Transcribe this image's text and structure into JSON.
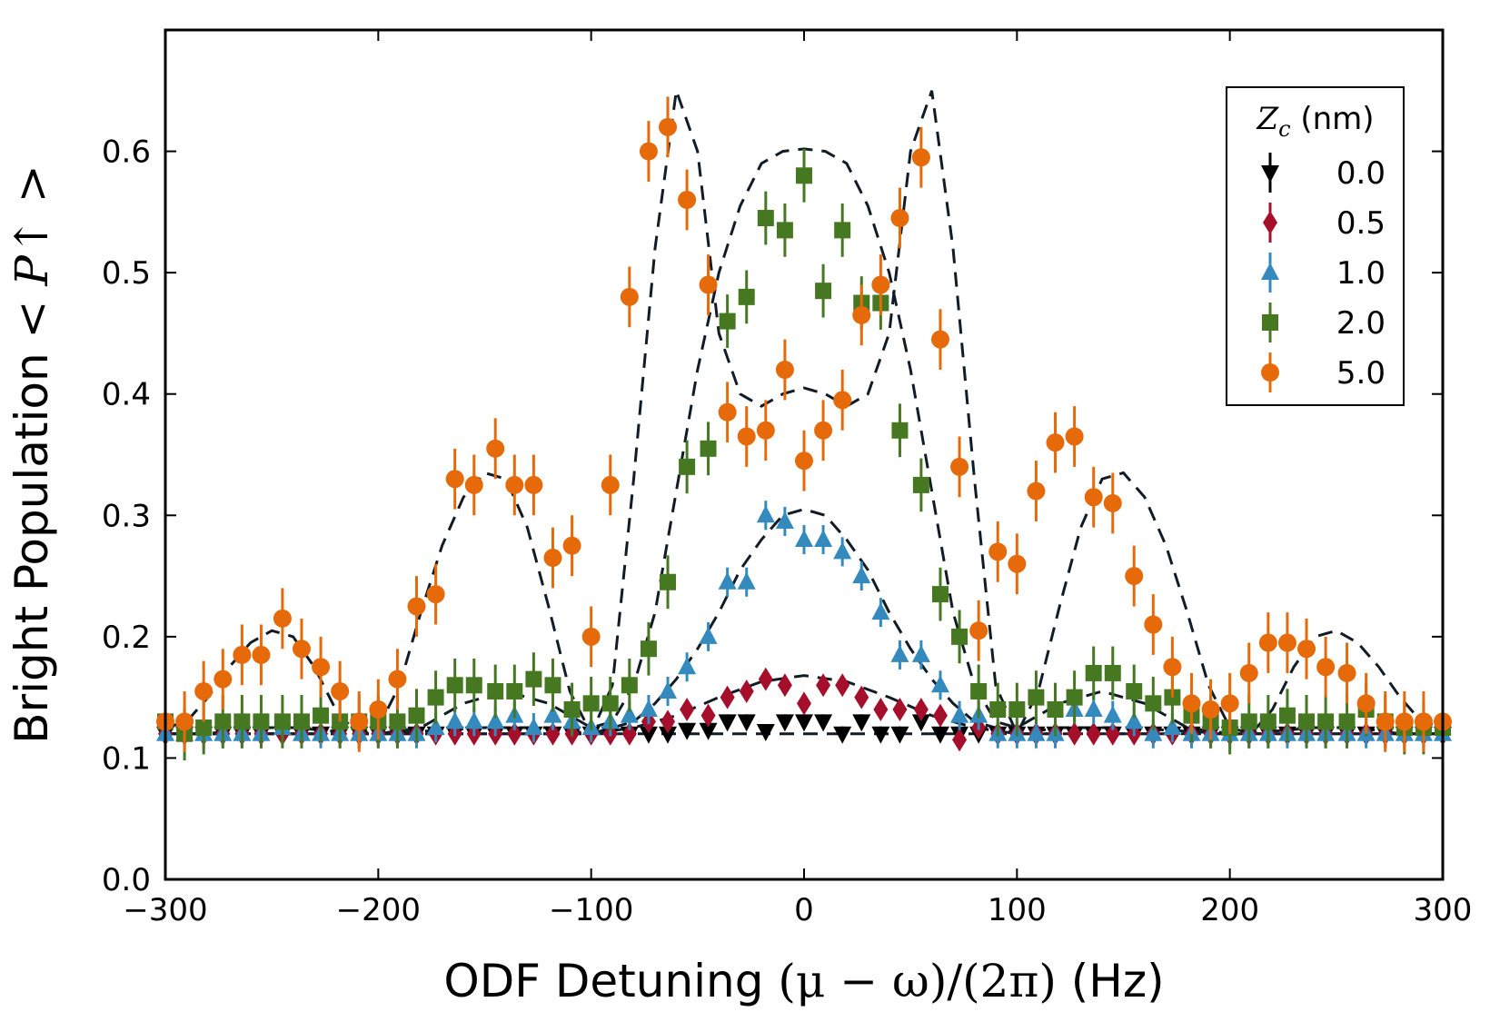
{
  "chart_data": {
    "type": "scatter",
    "title": "",
    "xlabel": {
      "prefix": "ODF Detuning ",
      "math": "(μ − ω)/(2π)",
      "suffix": " (Hz)"
    },
    "ylabel": {
      "prefix": "Bright Population ",
      "math": "< P↑ >"
    },
    "xlim": [
      -300,
      300
    ],
    "ylim": [
      0.0,
      0.7
    ],
    "xticks": [
      -300,
      -200,
      -100,
      0,
      100,
      200,
      300
    ],
    "xtick_labels": [
      "−300",
      "−200",
      "−100",
      "0",
      "100",
      "200",
      "300"
    ],
    "yticks": [
      0.0,
      0.1,
      0.2,
      0.3,
      0.4,
      0.5,
      0.6
    ],
    "ytick_labels": [
      "0.0",
      "0.1",
      "0.2",
      "0.3",
      "0.4",
      "0.5",
      "0.6"
    ],
    "grid": false,
    "legend": {
      "position": "top-right",
      "title_symbol": "Z",
      "title_subscript": "c",
      "title_unit": " (nm)"
    },
    "series": [
      {
        "name": "0.0",
        "color": "#000000",
        "marker": "triangle-down",
        "x": [
          -300,
          -291,
          -282,
          -273,
          -264,
          -255,
          -245,
          -236,
          -227,
          -218,
          -209,
          -200,
          -191,
          -182,
          -173,
          -164,
          -155,
          -145,
          -136,
          -127,
          -118,
          -109,
          -100,
          -91,
          -82,
          -73,
          -64,
          -55,
          -45,
          -36,
          -27,
          -18,
          -9,
          0,
          9,
          18,
          27,
          36,
          45,
          55,
          64,
          73,
          82,
          91,
          100,
          109,
          118,
          127,
          136,
          145,
          155,
          164,
          173,
          182,
          191,
          200,
          209,
          218,
          227,
          236,
          245,
          255,
          264,
          273,
          282,
          291,
          300
        ],
        "y": [
          0.12,
          0.12,
          0.12,
          0.12,
          0.12,
          0.12,
          0.12,
          0.12,
          0.12,
          0.12,
          0.12,
          0.12,
          0.12,
          0.12,
          0.12,
          0.12,
          0.12,
          0.12,
          0.12,
          0.12,
          0.12,
          0.12,
          0.12,
          0.12,
          0.12,
          0.12,
          0.12,
          0.123,
          0.123,
          0.13,
          0.13,
          0.122,
          0.13,
          0.13,
          0.13,
          0.12,
          0.13,
          0.12,
          0.12,
          0.13,
          0.12,
          0.12,
          0.12,
          0.12,
          0.12,
          0.12,
          0.12,
          0.12,
          0.12,
          0.12,
          0.12,
          0.12,
          0.12,
          0.12,
          0.12,
          0.12,
          0.12,
          0.12,
          0.12,
          0.12,
          0.12,
          0.12,
          0.12,
          0.12,
          0.12,
          0.12,
          0.12
        ],
        "err": 0.006
      },
      {
        "name": "0.5",
        "color": "#a50f2c",
        "marker": "diamond",
        "x": [
          -300,
          -291,
          -282,
          -273,
          -264,
          -255,
          -245,
          -236,
          -227,
          -218,
          -209,
          -200,
          -191,
          -182,
          -173,
          -164,
          -155,
          -145,
          -136,
          -127,
          -118,
          -109,
          -100,
          -91,
          -82,
          -73,
          -64,
          -55,
          -45,
          -36,
          -27,
          -18,
          -9,
          0,
          9,
          18,
          27,
          36,
          45,
          55,
          64,
          73,
          82,
          91,
          100,
          109,
          118,
          127,
          136,
          145,
          155,
          164,
          173,
          182,
          191,
          200,
          209,
          218,
          227,
          236,
          245,
          255,
          264,
          273,
          282,
          291,
          300
        ],
        "y": [
          0.12,
          0.12,
          0.12,
          0.12,
          0.12,
          0.12,
          0.12,
          0.12,
          0.12,
          0.12,
          0.12,
          0.12,
          0.12,
          0.12,
          0.12,
          0.12,
          0.12,
          0.12,
          0.12,
          0.12,
          0.12,
          0.12,
          0.12,
          0.12,
          0.12,
          0.13,
          0.13,
          0.14,
          0.135,
          0.15,
          0.155,
          0.165,
          0.16,
          0.145,
          0.16,
          0.16,
          0.15,
          0.14,
          0.14,
          0.14,
          0.135,
          0.115,
          0.125,
          0.12,
          0.12,
          0.12,
          0.12,
          0.12,
          0.12,
          0.12,
          0.12,
          0.12,
          0.12,
          0.12,
          0.12,
          0.12,
          0.12,
          0.12,
          0.12,
          0.12,
          0.12,
          0.12,
          0.12,
          0.12,
          0.12,
          0.12,
          0.12
        ],
        "err": 0.007
      },
      {
        "name": "1.0",
        "color": "#348abd",
        "marker": "triangle-up",
        "x": [
          -300,
          -291,
          -282,
          -273,
          -264,
          -255,
          -245,
          -236,
          -227,
          -218,
          -209,
          -200,
          -191,
          -182,
          -173,
          -164,
          -155,
          -145,
          -136,
          -127,
          -118,
          -109,
          -100,
          -91,
          -82,
          -73,
          -64,
          -55,
          -45,
          -36,
          -27,
          -18,
          -9,
          0,
          9,
          18,
          27,
          36,
          45,
          55,
          64,
          73,
          82,
          91,
          100,
          109,
          118,
          127,
          136,
          145,
          155,
          164,
          173,
          182,
          191,
          200,
          209,
          218,
          227,
          236,
          245,
          255,
          264,
          273,
          282,
          291,
          300
        ],
        "y": [
          0.12,
          0.12,
          0.12,
          0.12,
          0.12,
          0.12,
          0.125,
          0.12,
          0.12,
          0.12,
          0.12,
          0.12,
          0.12,
          0.12,
          0.125,
          0.13,
          0.13,
          0.13,
          0.135,
          0.125,
          0.135,
          0.13,
          0.125,
          0.13,
          0.135,
          0.14,
          0.155,
          0.175,
          0.2,
          0.245,
          0.245,
          0.3,
          0.295,
          0.28,
          0.28,
          0.27,
          0.25,
          0.22,
          0.185,
          0.185,
          0.16,
          0.135,
          0.135,
          0.12,
          0.12,
          0.12,
          0.12,
          0.14,
          0.14,
          0.135,
          0.13,
          0.12,
          0.125,
          0.12,
          0.12,
          0.12,
          0.12,
          0.12,
          0.12,
          0.12,
          0.12,
          0.12,
          0.12,
          0.12,
          0.12,
          0.12,
          0.12
        ],
        "err": 0.012
      },
      {
        "name": "2.0",
        "color": "#467821",
        "marker": "square",
        "x": [
          -300,
          -291,
          -282,
          -273,
          -264,
          -255,
          -245,
          -236,
          -227,
          -218,
          -209,
          -200,
          -191,
          -182,
          -173,
          -164,
          -155,
          -145,
          -136,
          -127,
          -118,
          -109,
          -100,
          -91,
          -82,
          -73,
          -64,
          -55,
          -45,
          -36,
          -27,
          -18,
          -9,
          0,
          9,
          18,
          27,
          36,
          45,
          55,
          64,
          73,
          82,
          91,
          100,
          109,
          118,
          127,
          136,
          145,
          155,
          164,
          173,
          182,
          191,
          200,
          209,
          218,
          227,
          236,
          245,
          255,
          264,
          273,
          282,
          291,
          300
        ],
        "y": [
          0.13,
          0.12,
          0.125,
          0.13,
          0.13,
          0.13,
          0.13,
          0.13,
          0.135,
          0.13,
          0.13,
          0.13,
          0.13,
          0.135,
          0.15,
          0.16,
          0.16,
          0.155,
          0.155,
          0.165,
          0.16,
          0.14,
          0.145,
          0.145,
          0.16,
          0.19,
          0.245,
          0.34,
          0.355,
          0.46,
          0.48,
          0.545,
          0.535,
          0.58,
          0.485,
          0.535,
          0.475,
          0.475,
          0.37,
          0.325,
          0.235,
          0.2,
          0.155,
          0.14,
          0.14,
          0.15,
          0.14,
          0.15,
          0.17,
          0.17,
          0.155,
          0.145,
          0.15,
          0.135,
          0.13,
          0.125,
          0.13,
          0.13,
          0.135,
          0.13,
          0.13,
          0.13,
          0.14,
          0.13,
          0.125,
          0.125,
          0.125
        ],
        "err": 0.022
      },
      {
        "name": "5.0",
        "color": "#e66a0a",
        "marker": "circle",
        "x": [
          -300,
          -291,
          -282,
          -273,
          -264,
          -255,
          -245,
          -236,
          -227,
          -218,
          -209,
          -200,
          -191,
          -182,
          -173,
          -164,
          -155,
          -145,
          -136,
          -127,
          -118,
          -109,
          -100,
          -91,
          -82,
          -73,
          -64,
          -55,
          -45,
          -36,
          -27,
          -18,
          -9,
          0,
          9,
          18,
          27,
          36,
          45,
          55,
          64,
          73,
          82,
          91,
          100,
          109,
          118,
          127,
          136,
          145,
          155,
          164,
          173,
          182,
          191,
          200,
          209,
          218,
          227,
          236,
          245,
          255,
          264,
          273,
          282,
          291,
          300
        ],
        "y": [
          0.13,
          0.13,
          0.155,
          0.165,
          0.185,
          0.185,
          0.215,
          0.19,
          0.175,
          0.155,
          0.13,
          0.14,
          0.165,
          0.225,
          0.235,
          0.33,
          0.325,
          0.355,
          0.325,
          0.325,
          0.265,
          0.275,
          0.2,
          0.325,
          0.48,
          0.6,
          0.62,
          0.56,
          0.49,
          0.385,
          0.365,
          0.37,
          0.42,
          0.345,
          0.37,
          0.395,
          0.465,
          0.49,
          0.545,
          0.595,
          0.445,
          0.34,
          0.205,
          0.27,
          0.26,
          0.32,
          0.36,
          0.365,
          0.315,
          0.31,
          0.25,
          0.21,
          0.175,
          0.145,
          0.14,
          0.145,
          0.17,
          0.195,
          0.195,
          0.19,
          0.175,
          0.17,
          0.145,
          0.13,
          0.13,
          0.13,
          0.13
        ],
        "err": 0.025
      }
    ],
    "fit_curves": [
      {
        "name": "fit-5.0",
        "style": "dashed",
        "color": "#111c26",
        "x": [
          -300,
          -290,
          -280,
          -270,
          -260,
          -250,
          -240,
          -230,
          -220,
          -210,
          -200,
          -190,
          -180,
          -170,
          -160,
          -150,
          -140,
          -130,
          -120,
          -110,
          -100,
          -90,
          -80,
          -70,
          -60,
          -50,
          -40,
          -30,
          -20,
          -10,
          0,
          10,
          20,
          30,
          40,
          50,
          60,
          70,
          80,
          90,
          100,
          110,
          120,
          130,
          140,
          150,
          160,
          170,
          180,
          190,
          200,
          210,
          220,
          230,
          240,
          250,
          260,
          270,
          280,
          290,
          300
        ],
        "y": [
          0.125,
          0.13,
          0.15,
          0.175,
          0.195,
          0.205,
          0.2,
          0.175,
          0.14,
          0.12,
          0.125,
          0.16,
          0.22,
          0.275,
          0.315,
          0.335,
          0.33,
          0.29,
          0.225,
          0.155,
          0.12,
          0.16,
          0.33,
          0.52,
          0.65,
          0.6,
          0.45,
          0.4,
          0.39,
          0.4,
          0.405,
          0.4,
          0.39,
          0.4,
          0.45,
          0.6,
          0.65,
          0.52,
          0.33,
          0.16,
          0.12,
          0.155,
          0.225,
          0.29,
          0.33,
          0.335,
          0.315,
          0.275,
          0.22,
          0.16,
          0.125,
          0.12,
          0.14,
          0.175,
          0.2,
          0.205,
          0.195,
          0.175,
          0.15,
          0.13,
          0.125
        ]
      },
      {
        "name": "fit-2.0",
        "style": "dashed",
        "color": "#111c26",
        "x": [
          -300,
          -280,
          -260,
          -240,
          -220,
          -200,
          -180,
          -160,
          -140,
          -120,
          -100,
          -90,
          -80,
          -70,
          -60,
          -50,
          -40,
          -30,
          -20,
          -10,
          0,
          10,
          20,
          30,
          40,
          50,
          60,
          70,
          80,
          90,
          100,
          120,
          140,
          160,
          180,
          200,
          220,
          240,
          260,
          280,
          300
        ],
        "y": [
          0.12,
          0.12,
          0.125,
          0.125,
          0.122,
          0.12,
          0.125,
          0.145,
          0.155,
          0.145,
          0.125,
          0.13,
          0.16,
          0.22,
          0.32,
          0.42,
          0.5,
          0.555,
          0.59,
          0.6,
          0.602,
          0.6,
          0.59,
          0.555,
          0.5,
          0.42,
          0.32,
          0.22,
          0.16,
          0.13,
          0.125,
          0.145,
          0.155,
          0.145,
          0.125,
          0.12,
          0.122,
          0.125,
          0.125,
          0.12,
          0.12
        ]
      },
      {
        "name": "fit-1.0",
        "style": "dashed",
        "color": "#111c26",
        "x": [
          -300,
          -250,
          -200,
          -150,
          -120,
          -100,
          -80,
          -70,
          -60,
          -50,
          -40,
          -30,
          -20,
          -10,
          0,
          10,
          20,
          30,
          40,
          50,
          60,
          70,
          80,
          100,
          120,
          150,
          200,
          250,
          300
        ],
        "y": [
          0.12,
          0.12,
          0.12,
          0.125,
          0.125,
          0.12,
          0.13,
          0.145,
          0.165,
          0.19,
          0.22,
          0.255,
          0.28,
          0.3,
          0.305,
          0.3,
          0.28,
          0.255,
          0.22,
          0.19,
          0.165,
          0.145,
          0.13,
          0.12,
          0.125,
          0.125,
          0.12,
          0.12,
          0.12
        ]
      },
      {
        "name": "fit-0.5",
        "style": "dashed",
        "color": "#111c26",
        "x": [
          -300,
          -200,
          -100,
          -80,
          -60,
          -40,
          -20,
          0,
          20,
          40,
          60,
          80,
          100,
          200,
          300
        ],
        "y": [
          0.12,
          0.12,
          0.12,
          0.125,
          0.135,
          0.15,
          0.163,
          0.168,
          0.163,
          0.15,
          0.135,
          0.125,
          0.12,
          0.12,
          0.12
        ]
      },
      {
        "name": "fit-0.0",
        "style": "dashed",
        "color": "#111c26",
        "x": [
          -300,
          -200,
          -100,
          0,
          100,
          200,
          300
        ],
        "y": [
          0.12,
          0.12,
          0.12,
          0.12,
          0.12,
          0.12,
          0.12
        ]
      }
    ]
  }
}
